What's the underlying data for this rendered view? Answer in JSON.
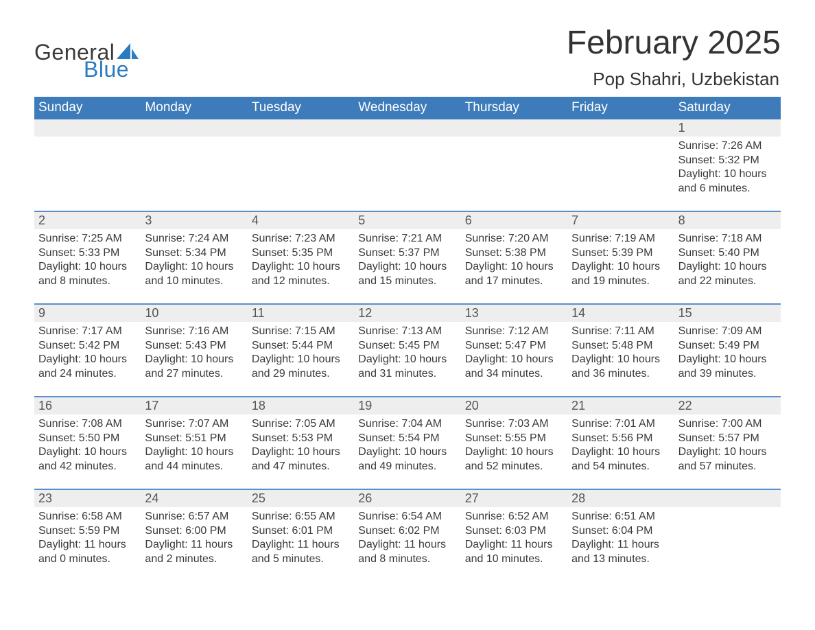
{
  "brand": {
    "word1": "General",
    "word2": "Blue",
    "color": "#2a7cc0"
  },
  "title": "February 2025",
  "location": "Pop Shahri, Uzbekistan",
  "colors": {
    "header_bg": "#3d7bba",
    "header_text": "#ffffff",
    "stripe_bg": "#eeeeee",
    "rule": "#5a8fc9",
    "body_text": "#3a3a3a",
    "page_bg": "#ffffff"
  },
  "days_of_week": [
    "Sunday",
    "Monday",
    "Tuesday",
    "Wednesday",
    "Thursday",
    "Friday",
    "Saturday"
  ],
  "labels": {
    "sunrise": "Sunrise",
    "sunset": "Sunset",
    "daylight": "Daylight"
  },
  "weeks": [
    [
      null,
      null,
      null,
      null,
      null,
      null,
      {
        "day": 1,
        "sunrise": "7:26 AM",
        "sunset": "5:32 PM",
        "daylight_h": 10,
        "daylight_m": 6
      }
    ],
    [
      {
        "day": 2,
        "sunrise": "7:25 AM",
        "sunset": "5:33 PM",
        "daylight_h": 10,
        "daylight_m": 8
      },
      {
        "day": 3,
        "sunrise": "7:24 AM",
        "sunset": "5:34 PM",
        "daylight_h": 10,
        "daylight_m": 10
      },
      {
        "day": 4,
        "sunrise": "7:23 AM",
        "sunset": "5:35 PM",
        "daylight_h": 10,
        "daylight_m": 12
      },
      {
        "day": 5,
        "sunrise": "7:21 AM",
        "sunset": "5:37 PM",
        "daylight_h": 10,
        "daylight_m": 15
      },
      {
        "day": 6,
        "sunrise": "7:20 AM",
        "sunset": "5:38 PM",
        "daylight_h": 10,
        "daylight_m": 17
      },
      {
        "day": 7,
        "sunrise": "7:19 AM",
        "sunset": "5:39 PM",
        "daylight_h": 10,
        "daylight_m": 19
      },
      {
        "day": 8,
        "sunrise": "7:18 AM",
        "sunset": "5:40 PM",
        "daylight_h": 10,
        "daylight_m": 22
      }
    ],
    [
      {
        "day": 9,
        "sunrise": "7:17 AM",
        "sunset": "5:42 PM",
        "daylight_h": 10,
        "daylight_m": 24
      },
      {
        "day": 10,
        "sunrise": "7:16 AM",
        "sunset": "5:43 PM",
        "daylight_h": 10,
        "daylight_m": 27
      },
      {
        "day": 11,
        "sunrise": "7:15 AM",
        "sunset": "5:44 PM",
        "daylight_h": 10,
        "daylight_m": 29
      },
      {
        "day": 12,
        "sunrise": "7:13 AM",
        "sunset": "5:45 PM",
        "daylight_h": 10,
        "daylight_m": 31
      },
      {
        "day": 13,
        "sunrise": "7:12 AM",
        "sunset": "5:47 PM",
        "daylight_h": 10,
        "daylight_m": 34
      },
      {
        "day": 14,
        "sunrise": "7:11 AM",
        "sunset": "5:48 PM",
        "daylight_h": 10,
        "daylight_m": 36
      },
      {
        "day": 15,
        "sunrise": "7:09 AM",
        "sunset": "5:49 PM",
        "daylight_h": 10,
        "daylight_m": 39
      }
    ],
    [
      {
        "day": 16,
        "sunrise": "7:08 AM",
        "sunset": "5:50 PM",
        "daylight_h": 10,
        "daylight_m": 42
      },
      {
        "day": 17,
        "sunrise": "7:07 AM",
        "sunset": "5:51 PM",
        "daylight_h": 10,
        "daylight_m": 44
      },
      {
        "day": 18,
        "sunrise": "7:05 AM",
        "sunset": "5:53 PM",
        "daylight_h": 10,
        "daylight_m": 47
      },
      {
        "day": 19,
        "sunrise": "7:04 AM",
        "sunset": "5:54 PM",
        "daylight_h": 10,
        "daylight_m": 49
      },
      {
        "day": 20,
        "sunrise": "7:03 AM",
        "sunset": "5:55 PM",
        "daylight_h": 10,
        "daylight_m": 52
      },
      {
        "day": 21,
        "sunrise": "7:01 AM",
        "sunset": "5:56 PM",
        "daylight_h": 10,
        "daylight_m": 54
      },
      {
        "day": 22,
        "sunrise": "7:00 AM",
        "sunset": "5:57 PM",
        "daylight_h": 10,
        "daylight_m": 57
      }
    ],
    [
      {
        "day": 23,
        "sunrise": "6:58 AM",
        "sunset": "5:59 PM",
        "daylight_h": 11,
        "daylight_m": 0
      },
      {
        "day": 24,
        "sunrise": "6:57 AM",
        "sunset": "6:00 PM",
        "daylight_h": 11,
        "daylight_m": 2
      },
      {
        "day": 25,
        "sunrise": "6:55 AM",
        "sunset": "6:01 PM",
        "daylight_h": 11,
        "daylight_m": 5
      },
      {
        "day": 26,
        "sunrise": "6:54 AM",
        "sunset": "6:02 PM",
        "daylight_h": 11,
        "daylight_m": 8
      },
      {
        "day": 27,
        "sunrise": "6:52 AM",
        "sunset": "6:03 PM",
        "daylight_h": 11,
        "daylight_m": 10
      },
      {
        "day": 28,
        "sunrise": "6:51 AM",
        "sunset": "6:04 PM",
        "daylight_h": 11,
        "daylight_m": 13
      },
      null
    ]
  ]
}
